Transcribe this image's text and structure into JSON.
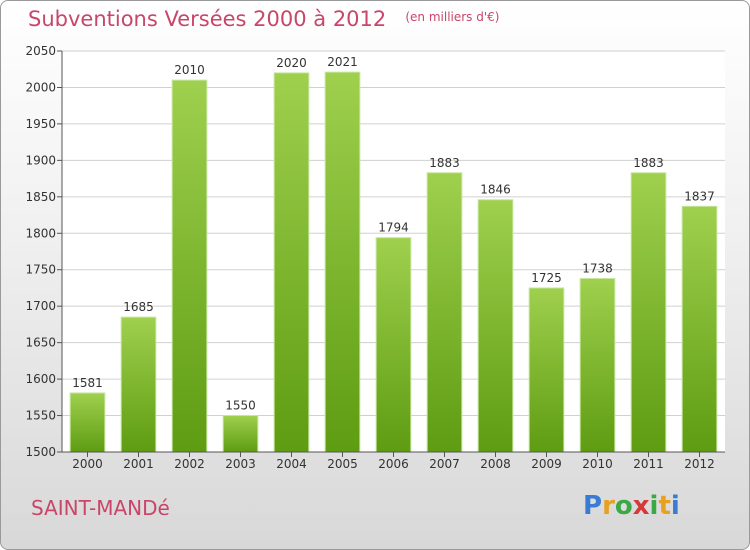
{
  "header": {
    "title": "Subventions Versées 2000 à 2012",
    "subtitle": "(en milliers d'€)"
  },
  "location": "SAINT-MANDé",
  "logo": {
    "text": "Proxiti",
    "letter_colors": [
      "#3a7bd5",
      "#e8a020",
      "#3aa845",
      "#d43a3a",
      "#3aa845",
      "#e8a020",
      "#3a7bd5"
    ]
  },
  "colors": {
    "title": "#c8466a",
    "bar_top": "#9fd04e",
    "bar_bottom": "#5e9c12",
    "plot_bg": "#ffffff",
    "grid": "#d0d0d0"
  },
  "chart_data": {
    "type": "bar",
    "title": "Subventions Versées 2000 à 2012",
    "subtitle": "(en milliers d'€)",
    "xlabel": "",
    "ylabel": "",
    "categories": [
      "2000",
      "2001",
      "2002",
      "2003",
      "2004",
      "2005",
      "2006",
      "2007",
      "2008",
      "2009",
      "2010",
      "2011",
      "2012"
    ],
    "values": [
      1581,
      1685,
      2010,
      1550,
      2020,
      2021,
      1794,
      1883,
      1846,
      1725,
      1738,
      1883,
      1837
    ],
    "ylim": [
      1500,
      2050
    ],
    "yticks": [
      1500,
      1550,
      1600,
      1650,
      1700,
      1750,
      1800,
      1850,
      1900,
      1950,
      2000,
      2050
    ],
    "grid": true,
    "legend": "none"
  }
}
